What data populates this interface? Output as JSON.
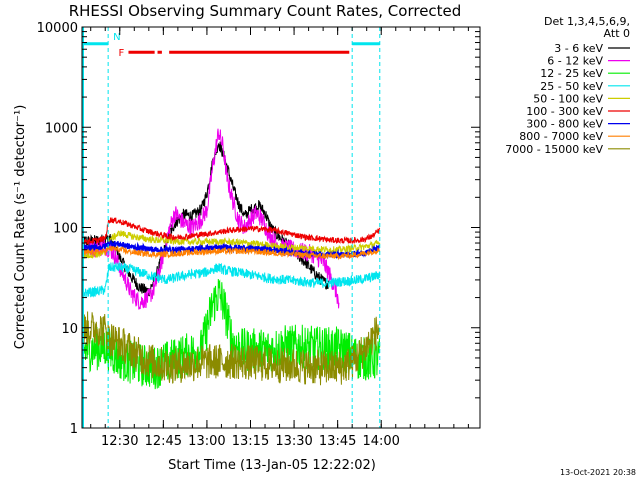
{
  "chart_data": {
    "type": "line",
    "title": "RHESSI Observing Summary Count Rates, Corrected",
    "xlabel": "Start Time (13-Jan-05 12:22:02)",
    "ylabel": "Corrected Count Rate (s⁻¹ detector⁻¹)",
    "ylog": true,
    "ylim": [
      1,
      10000
    ],
    "xlim_min": [
      -5,
      132
    ],
    "x_units": "minutes after 12:22:02",
    "x_ticks": [
      {
        "t": 8,
        "label": "12:30"
      },
      {
        "t": 23,
        "label": "12:45"
      },
      {
        "t": 38,
        "label": "13:00"
      },
      {
        "t": 53,
        "label": "13:15"
      },
      {
        "t": 68,
        "label": "13:30"
      },
      {
        "t": 83,
        "label": "13:45"
      },
      {
        "t": 98,
        "label": "14:00"
      }
    ],
    "y_ticks": [
      {
        "v": 1,
        "label": "1"
      },
      {
        "v": 10,
        "label": "10"
      },
      {
        "v": 100,
        "label": "100"
      },
      {
        "v": 1000,
        "label": "1000"
      },
      {
        "v": 10000,
        "label": "10000"
      }
    ],
    "legend_header": [
      "Det 1,3,4,5,6,9,",
      "Att 0"
    ],
    "legend_position": "right",
    "timestamp": "13-Oct-2021 20:38",
    "flags": {
      "F_label": "F",
      "N_label": "N",
      "flare_segments": [
        [
          11,
          20
        ],
        [
          21,
          22.5
        ],
        [
          25,
          87
        ]
      ],
      "flare_level": 5600,
      "night_segments": [
        [
          -5,
          4
        ],
        [
          88,
          97.5
        ]
      ],
      "night_level": 6800,
      "boundaries": [
        4,
        88,
        97.5
      ],
      "left_edge": -5,
      "flare_color": "#ee0000",
      "night_color": "#00e5ee"
    },
    "series": [
      {
        "name": "3 - 6 keV",
        "color": "#000000",
        "data": [
          [
            -5,
            72
          ],
          [
            0,
            74
          ],
          [
            3,
            76
          ],
          [
            4.3,
            80
          ],
          [
            6,
            65
          ],
          [
            8,
            50
          ],
          [
            10,
            40
          ],
          [
            12,
            32
          ],
          [
            15,
            25
          ],
          [
            18,
            23
          ],
          [
            20,
            30
          ],
          [
            22,
            45
          ],
          [
            25,
            85
          ],
          [
            27,
            110
          ],
          [
            30,
            135
          ],
          [
            33,
            130
          ],
          [
            36,
            150
          ],
          [
            38,
            220
          ],
          [
            40,
            450
          ],
          [
            42,
            700
          ],
          [
            43.5,
            550
          ],
          [
            45,
            400
          ],
          [
            47,
            250
          ],
          [
            49,
            170
          ],
          [
            51,
            130
          ],
          [
            53,
            150
          ],
          [
            56,
            165
          ],
          [
            58,
            140
          ],
          [
            60,
            100
          ],
          [
            62,
            85
          ],
          [
            64,
            75
          ],
          [
            66,
            65
          ],
          [
            68,
            58
          ],
          [
            70,
            50
          ],
          [
            72,
            45
          ],
          [
            74,
            38
          ],
          [
            76,
            33
          ],
          [
            78,
            29
          ],
          [
            80,
            27
          ]
        ]
      },
      {
        "name": "6 - 12 keV",
        "color": "#ee00ee",
        "data": [
          [
            -5,
            60
          ],
          [
            0,
            62
          ],
          [
            3,
            64
          ],
          [
            4.3,
            62
          ],
          [
            6,
            55
          ],
          [
            8,
            40
          ],
          [
            10,
            30
          ],
          [
            12,
            22
          ],
          [
            15,
            18
          ],
          [
            18,
            20
          ],
          [
            20,
            25
          ],
          [
            22,
            40
          ],
          [
            25,
            95
          ],
          [
            27,
            140
          ],
          [
            30,
            110
          ],
          [
            33,
            100
          ],
          [
            36,
            120
          ],
          [
            38,
            150
          ],
          [
            40,
            400
          ],
          [
            42,
            900
          ],
          [
            43.5,
            650
          ],
          [
            45,
            300
          ],
          [
            47,
            180
          ],
          [
            49,
            115
          ],
          [
            51,
            100
          ],
          [
            53,
            120
          ],
          [
            55,
            140
          ],
          [
            57,
            120
          ],
          [
            59,
            90
          ],
          [
            61,
            75
          ],
          [
            63,
            65
          ],
          [
            66,
            62
          ],
          [
            70,
            58
          ],
          [
            74,
            55
          ],
          [
            78,
            45
          ],
          [
            80,
            35
          ],
          [
            82,
            25
          ],
          [
            83,
            20
          ],
          [
            83.5,
            15
          ]
        ]
      },
      {
        "name": "12 - 25 keV",
        "color": "#00ee00",
        "data": [
          [
            -5,
            6
          ],
          [
            0,
            6.2
          ],
          [
            3,
            6.5
          ],
          [
            4.3,
            6
          ],
          [
            6,
            5.5
          ],
          [
            8,
            5
          ],
          [
            12,
            4.5
          ],
          [
            16,
            4.2
          ],
          [
            20,
            4
          ],
          [
            24,
            4.5
          ],
          [
            28,
            5
          ],
          [
            32,
            5.5
          ],
          [
            36,
            6
          ],
          [
            38,
            10
          ],
          [
            40,
            17
          ],
          [
            42,
            22
          ],
          [
            43.5,
            18
          ],
          [
            45,
            12
          ],
          [
            47,
            7
          ],
          [
            50,
            6
          ],
          [
            55,
            6
          ],
          [
            60,
            6
          ],
          [
            65,
            6.5
          ],
          [
            70,
            6.5
          ],
          [
            75,
            6.3
          ],
          [
            80,
            6.2
          ],
          [
            83,
            6.2
          ],
          [
            85,
            6
          ],
          [
            90,
            5
          ],
          [
            95,
            4.8
          ],
          [
            97.5,
            5
          ]
        ]
      },
      {
        "name": "25 - 50 keV",
        "color": "#00e5ee",
        "data": [
          [
            -5,
            22
          ],
          [
            0,
            23
          ],
          [
            3,
            24
          ],
          [
            4.3,
            40
          ],
          [
            8,
            40
          ],
          [
            12,
            38
          ],
          [
            16,
            35
          ],
          [
            20,
            32
          ],
          [
            24,
            30
          ],
          [
            28,
            32
          ],
          [
            32,
            34
          ],
          [
            36,
            35
          ],
          [
            38,
            36
          ],
          [
            40,
            38
          ],
          [
            42,
            40
          ],
          [
            43.5,
            38
          ],
          [
            45,
            37
          ],
          [
            50,
            35
          ],
          [
            55,
            33
          ],
          [
            60,
            31
          ],
          [
            65,
            30
          ],
          [
            70,
            29
          ],
          [
            75,
            28
          ],
          [
            80,
            28
          ],
          [
            85,
            29
          ],
          [
            90,
            30
          ],
          [
            95,
            32
          ],
          [
            97.5,
            34
          ]
        ]
      },
      {
        "name": "50 - 100 keV",
        "color": "#cdcd00",
        "data": [
          [
            -5,
            52
          ],
          [
            0,
            54
          ],
          [
            3,
            55
          ],
          [
            4.3,
            75
          ],
          [
            8,
            88
          ],
          [
            12,
            82
          ],
          [
            16,
            78
          ],
          [
            20,
            75
          ],
          [
            24,
            74
          ],
          [
            28,
            73
          ],
          [
            32,
            72
          ],
          [
            36,
            72
          ],
          [
            40,
            72
          ],
          [
            44,
            72
          ],
          [
            48,
            71
          ],
          [
            52,
            70
          ],
          [
            56,
            68
          ],
          [
            60,
            66
          ],
          [
            64,
            64
          ],
          [
            68,
            63
          ],
          [
            72,
            62
          ],
          [
            76,
            61
          ],
          [
            80,
            60
          ],
          [
            84,
            60
          ],
          [
            88,
            62
          ],
          [
            92,
            64
          ],
          [
            97.5,
            70
          ]
        ]
      },
      {
        "name": "100 - 300 keV",
        "color": "#ee0000",
        "data": [
          [
            -5,
            72
          ],
          [
            0,
            74
          ],
          [
            3,
            78
          ],
          [
            4.3,
            120
          ],
          [
            8,
            115
          ],
          [
            12,
            105
          ],
          [
            16,
            95
          ],
          [
            20,
            88
          ],
          [
            24,
            82
          ],
          [
            28,
            80
          ],
          [
            32,
            82
          ],
          [
            36,
            85
          ],
          [
            40,
            88
          ],
          [
            44,
            92
          ],
          [
            48,
            95
          ],
          [
            52,
            97
          ],
          [
            56,
            97
          ],
          [
            60,
            95
          ],
          [
            64,
            90
          ],
          [
            68,
            85
          ],
          [
            72,
            80
          ],
          [
            76,
            78
          ],
          [
            80,
            75
          ],
          [
            84,
            74
          ],
          [
            88,
            74
          ],
          [
            92,
            76
          ],
          [
            95,
            82
          ],
          [
            97.5,
            95
          ]
        ]
      },
      {
        "name": "300 - 800 keV",
        "color": "#0000ee",
        "data": [
          [
            -5,
            62
          ],
          [
            0,
            63
          ],
          [
            3,
            65
          ],
          [
            4.3,
            70
          ],
          [
            8,
            68
          ],
          [
            12,
            64
          ],
          [
            16,
            62
          ],
          [
            20,
            60
          ],
          [
            24,
            60
          ],
          [
            28,
            60
          ],
          [
            32,
            61
          ],
          [
            36,
            62
          ],
          [
            40,
            62
          ],
          [
            44,
            63
          ],
          [
            48,
            63
          ],
          [
            52,
            62
          ],
          [
            56,
            61
          ],
          [
            60,
            60
          ],
          [
            64,
            58
          ],
          [
            68,
            56
          ],
          [
            72,
            55
          ],
          [
            76,
            54
          ],
          [
            80,
            54
          ],
          [
            84,
            53
          ],
          [
            88,
            54
          ],
          [
            92,
            56
          ],
          [
            97.5,
            62
          ]
        ]
      },
      {
        "name": "800 - 7000 keV",
        "color": "#ff7f00",
        "data": [
          [
            -5,
            56
          ],
          [
            0,
            57
          ],
          [
            3,
            58
          ],
          [
            4.3,
            62
          ],
          [
            8,
            60
          ],
          [
            12,
            57
          ],
          [
            16,
            55
          ],
          [
            20,
            54
          ],
          [
            24,
            54
          ],
          [
            28,
            55
          ],
          [
            32,
            56
          ],
          [
            36,
            57
          ],
          [
            40,
            58
          ],
          [
            44,
            58
          ],
          [
            48,
            58
          ],
          [
            52,
            58
          ],
          [
            56,
            57
          ],
          [
            60,
            56
          ],
          [
            64,
            55
          ],
          [
            68,
            54
          ],
          [
            72,
            53
          ],
          [
            76,
            52
          ],
          [
            80,
            52
          ],
          [
            84,
            52
          ],
          [
            88,
            53
          ],
          [
            92,
            55
          ],
          [
            97.5,
            60
          ]
        ]
      },
      {
        "name": "7000 - 15000 keV",
        "color": "#8b8b00",
        "data": [
          [
            -5,
            9.5
          ],
          [
            0,
            10
          ],
          [
            3,
            9.5
          ],
          [
            4.3,
            8
          ],
          [
            8,
            7
          ],
          [
            12,
            6
          ],
          [
            16,
            5
          ],
          [
            20,
            4.5
          ],
          [
            24,
            4.2
          ],
          [
            28,
            4.2
          ],
          [
            32,
            4.3
          ],
          [
            36,
            4.5
          ],
          [
            40,
            4.6
          ],
          [
            44,
            4.6
          ],
          [
            48,
            4.6
          ],
          [
            52,
            4.5
          ],
          [
            56,
            4.4
          ],
          [
            60,
            4.3
          ],
          [
            64,
            4.2
          ],
          [
            68,
            4.2
          ],
          [
            72,
            4.1
          ],
          [
            76,
            4
          ],
          [
            80,
            4
          ],
          [
            84,
            4
          ],
          [
            88,
            4.5
          ],
          [
            92,
            6
          ],
          [
            95,
            8
          ],
          [
            97.5,
            10
          ]
        ]
      }
    ]
  }
}
